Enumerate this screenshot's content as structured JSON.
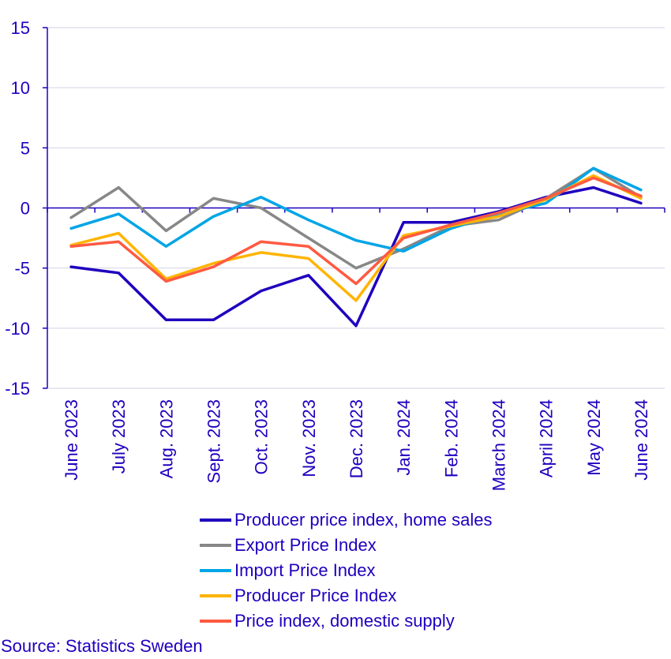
{
  "chart_data": {
    "type": "line",
    "categories": [
      "June 2023",
      "July 2023",
      "Aug. 2023",
      "Sept. 2023",
      "Oct. 2023",
      "Nov. 2023",
      "Dec. 2023",
      "Jan. 2024",
      "Feb. 2024",
      "March 2024",
      "April 2024",
      "May 2024",
      "June 2024"
    ],
    "ylim": [
      -15,
      15
    ],
    "yticks": [
      "15",
      "10",
      "5",
      "0",
      "-5",
      "-10",
      "-15"
    ],
    "ytick_values": [
      15,
      10,
      5,
      0,
      -5,
      -10,
      -15
    ],
    "grid": true,
    "series": [
      {
        "name": "Producer price index, home sales",
        "color": "#1e00be",
        "values": [
          -4.9,
          -5.4,
          -9.3,
          -9.3,
          -6.9,
          -5.6,
          -9.8,
          -1.2,
          -1.2,
          -0.3,
          0.9,
          1.7,
          0.4
        ]
      },
      {
        "name": "Export Price Index",
        "color": "#878787",
        "values": [
          -0.8,
          1.7,
          -1.9,
          0.8,
          0.0,
          -2.5,
          -5.0,
          -3.4,
          -1.5,
          -1.0,
          0.8,
          3.3,
          0.9
        ]
      },
      {
        "name": "Import Price Index",
        "color": "#00a5e6",
        "values": [
          -1.7,
          -0.5,
          -3.2,
          -0.7,
          0.9,
          -1.0,
          -2.7,
          -3.6,
          -1.7,
          -0.5,
          0.4,
          3.3,
          1.5
        ]
      },
      {
        "name": "Producer Price Index",
        "color": "#ffb400",
        "values": [
          -3.1,
          -2.1,
          -5.9,
          -4.6,
          -3.7,
          -4.2,
          -7.7,
          -2.3,
          -1.5,
          -0.7,
          0.7,
          2.7,
          0.8
        ]
      },
      {
        "name": "Price index, domestic supply",
        "color": "#ff5a41",
        "values": [
          -3.2,
          -2.8,
          -6.1,
          -4.9,
          -2.8,
          -3.2,
          -6.3,
          -2.5,
          -1.4,
          -0.4,
          0.8,
          2.5,
          1.0
        ]
      }
    ]
  },
  "legend": {
    "items": [
      {
        "label": "Producer price index, home sales",
        "color": "#1e00be"
      },
      {
        "label": "Export Price Index",
        "color": "#878787"
      },
      {
        "label": "Import Price Index",
        "color": "#00a5e6"
      },
      {
        "label": "Producer Price Index",
        "color": "#ffb400"
      },
      {
        "label": "Price index, domestic supply",
        "color": "#ff5a41"
      }
    ]
  },
  "source": "Source: Statistics Sweden"
}
